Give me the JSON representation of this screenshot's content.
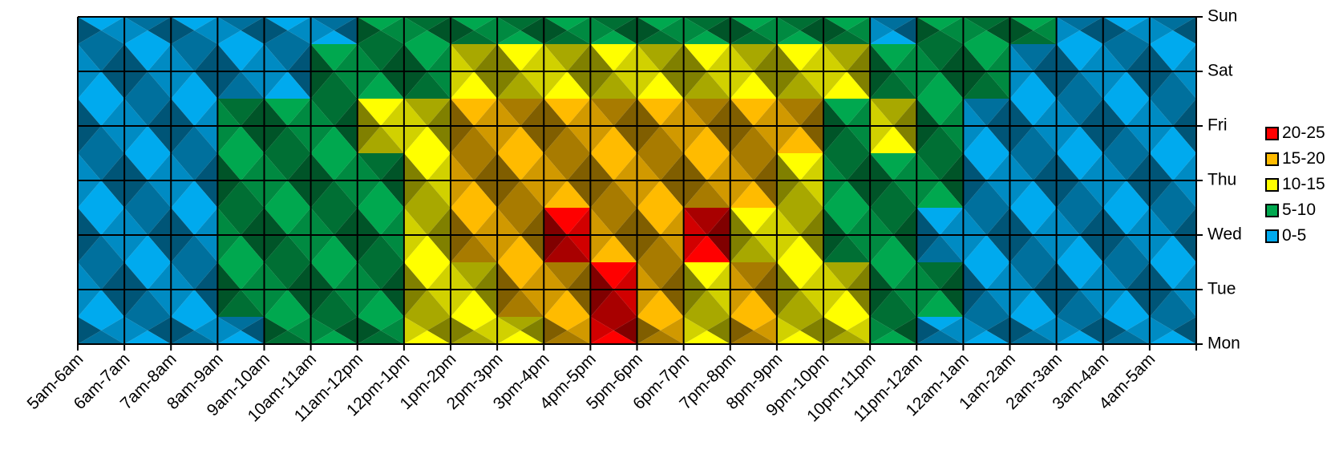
{
  "chart_data": {
    "type": "heatmap",
    "x_categories": [
      "5am-6am",
      "6am-7am",
      "7am-8am",
      "8am-9am",
      "9am-10am",
      "10am-11am",
      "11am-12pm",
      "12pm-1pm",
      "1pm-2pm",
      "2pm-3pm",
      "3pm-4pm",
      "4pm-5pm",
      "5pm-6pm",
      "6pm-7pm",
      "7pm-8pm",
      "8pm-9pm",
      "9pm-10pm",
      "10pm-11pm",
      "11pm-12am",
      "12am-1am",
      "1am-2am",
      "2am-3am",
      "3am-4am",
      "4am-5am"
    ],
    "y_categories": [
      "Mon",
      "Tue",
      "Wed",
      "Thu",
      "Fri",
      "Sat",
      "Sun"
    ],
    "values": [
      [
        3,
        2,
        2,
        3,
        6,
        7,
        8,
        12,
        12,
        13,
        16,
        22,
        17,
        14,
        16,
        11,
        11,
        6,
        4,
        2,
        2,
        2,
        2,
        2
      ],
      [
        4,
        3,
        3,
        5,
        6,
        6,
        8,
        12,
        14,
        16,
        18,
        21,
        17,
        14,
        16,
        12,
        12,
        7,
        6,
        3,
        2,
        2,
        2,
        2
      ],
      [
        4,
        3,
        3,
        6,
        6,
        5,
        8,
        13,
        15,
        17,
        21,
        17,
        16,
        21,
        14,
        11,
        9,
        6,
        4,
        2,
        2,
        2,
        2,
        2
      ],
      [
        3,
        3,
        4,
        6,
        7,
        7,
        8,
        13,
        16,
        17,
        18,
        18,
        17,
        16,
        15,
        12,
        8,
        6,
        6,
        2,
        2,
        2,
        2,
        2
      ],
      [
        3,
        3,
        3,
        5,
        6,
        8,
        11,
        13,
        15,
        16,
        17,
        17,
        16,
        16,
        17,
        15,
        9,
        12,
        6,
        3,
        2,
        2,
        2,
        2
      ],
      [
        3,
        3,
        3,
        3,
        4,
        5,
        7,
        9,
        10,
        12,
        12,
        13,
        12,
        14,
        12,
        11,
        10,
        7,
        6,
        6,
        3,
        2,
        2,
        2
      ],
      [
        3,
        3,
        3,
        3,
        3,
        3,
        7,
        7,
        7,
        7,
        7,
        5,
        7,
        9,
        7,
        7,
        7,
        4,
        6,
        6,
        6,
        3,
        2,
        2
      ]
    ],
    "legend": [
      {
        "label": "20-25",
        "color": "#ff0000"
      },
      {
        "label": "15-20",
        "color": "#ffbb00"
      },
      {
        "label": "10-15",
        "color": "#ffff00"
      },
      {
        "label": "5-10",
        "color": "#00a84f"
      },
      {
        "label": "0-5",
        "color": "#00aaee"
      }
    ],
    "legend_position": "right",
    "grid": true
  }
}
